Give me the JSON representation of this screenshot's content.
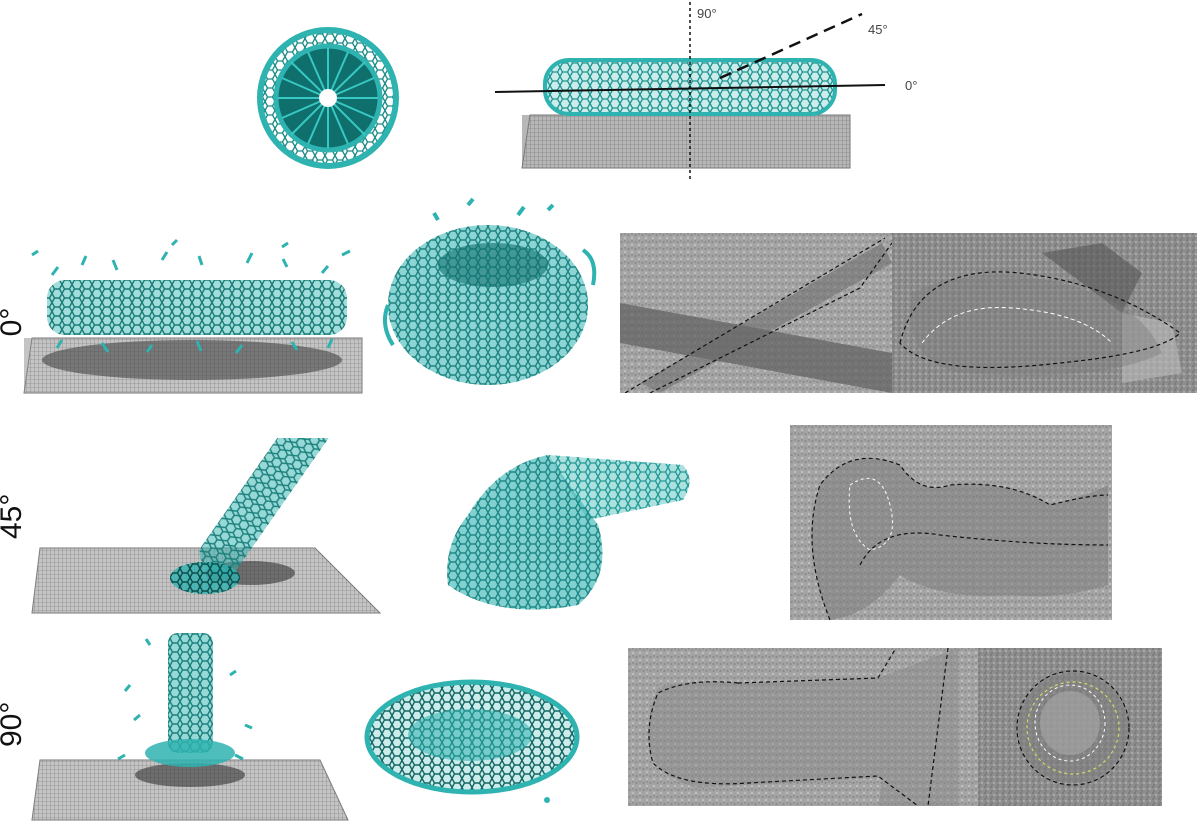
{
  "figure": {
    "axis_labels": {
      "deg90": "90°",
      "deg45": "45°",
      "deg0": "0°"
    },
    "rows": [
      {
        "id": "row-0",
        "label": "0°"
      },
      {
        "id": "row-45",
        "label": "45°"
      },
      {
        "id": "row-90",
        "label": "90°"
      }
    ],
    "colors": {
      "nanotube": "#2fb3b0",
      "nanotube_dark": "#0f7470",
      "substrate": "#8a8a8a",
      "tem_gray": "#9a9a9a"
    }
  }
}
